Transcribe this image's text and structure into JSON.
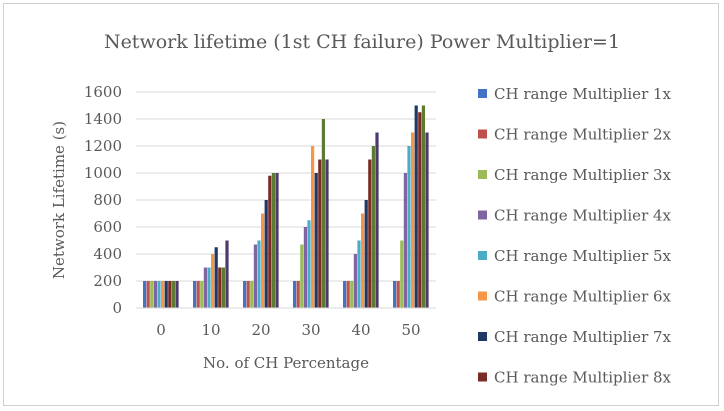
{
  "chart_data": {
    "type": "bar",
    "title": "Network lifetime (1st CH failure) Power Multiplier=1",
    "xlabel": "No. of CH Percentage",
    "ylabel": "Network Lifetime (s)",
    "categories": [
      "0",
      "10",
      "20",
      "30",
      "40",
      "50"
    ],
    "ylim": [
      0,
      1600
    ],
    "yticks": [
      0,
      200,
      400,
      600,
      800,
      1000,
      1200,
      1400,
      1600
    ],
    "grid": true,
    "legend_position": "right",
    "series": [
      {
        "name": "CH range Multiplier 1x",
        "color": "#4472C4",
        "values": [
          200,
          200,
          200,
          200,
          200,
          200
        ]
      },
      {
        "name": "CH range Multiplier 2x",
        "color": "#C0504D",
        "values": [
          200,
          200,
          200,
          200,
          200,
          200
        ]
      },
      {
        "name": "CH range Multiplier 3x",
        "color": "#9BBB59",
        "values": [
          200,
          200,
          200,
          470,
          200,
          500
        ]
      },
      {
        "name": "CH range Multiplier 4x",
        "color": "#8064A2",
        "values": [
          200,
          300,
          470,
          600,
          400,
          1000
        ]
      },
      {
        "name": "CH range Multiplier 5x",
        "color": "#4BACC6",
        "values": [
          200,
          300,
          500,
          650,
          500,
          1200
        ]
      },
      {
        "name": "CH range Multiplier 6x",
        "color": "#F79646",
        "values": [
          200,
          400,
          700,
          1200,
          700,
          1300
        ]
      },
      {
        "name": "CH range Multiplier 7x",
        "color": "#1F3864",
        "values": [
          200,
          450,
          800,
          1000,
          800,
          1500
        ]
      },
      {
        "name": "CH range Multiplier 8x",
        "color": "#7B2B25",
        "values": [
          200,
          300,
          980,
          1100,
          1100,
          1450
        ]
      },
      {
        "name": "",
        "color": "#5C7A30",
        "values": [
          200,
          300,
          1000,
          1400,
          1200,
          1500
        ]
      },
      {
        "name": "",
        "color": "#4B3A6B",
        "values": [
          200,
          500,
          1000,
          1100,
          1300,
          1300
        ]
      }
    ]
  }
}
